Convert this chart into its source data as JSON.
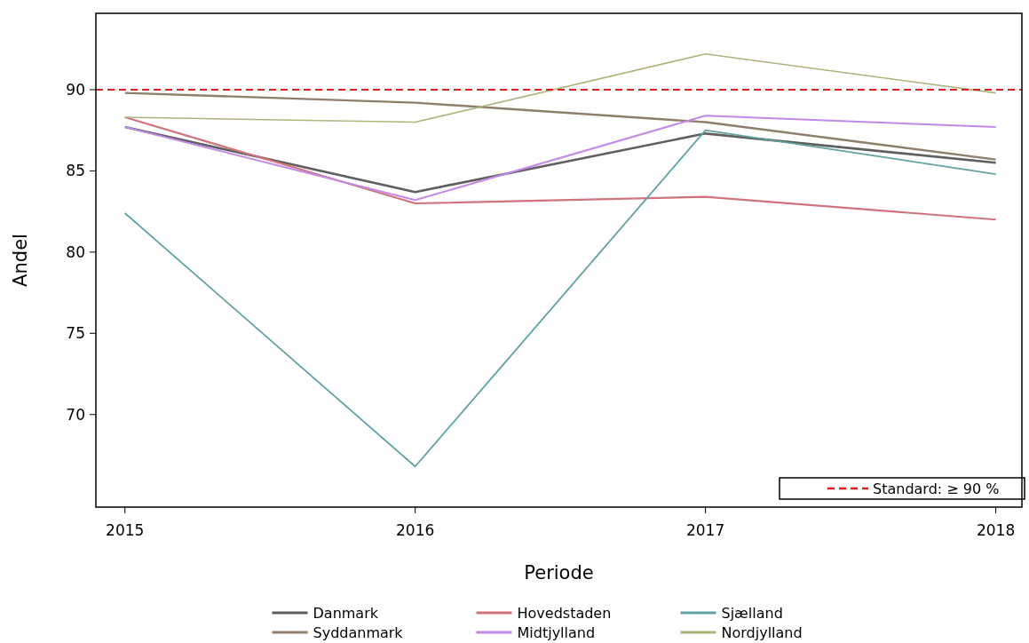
{
  "chart_data": {
    "type": "line",
    "xlabel": "Periode",
    "ylabel": "Andel",
    "x": [
      2015,
      2016,
      2017,
      2018
    ],
    "xlim": [
      2014.9,
      2018.09
    ],
    "xticks": [
      2015,
      2016,
      2017,
      2018
    ],
    "ylim": [
      64.3,
      94.7
    ],
    "yticks": [
      70,
      75,
      80,
      85,
      90
    ],
    "series": [
      {
        "name": "Danmark",
        "color": "#5f5f5f",
        "values": [
          87.7,
          83.7,
          87.3,
          85.5
        ]
      },
      {
        "name": "Syddanmark",
        "color": "#8f7e6c",
        "values": [
          89.8,
          89.2,
          88.0,
          85.7
        ]
      },
      {
        "name": "Hovedstaden",
        "color": "#d0747c",
        "values": [
          88.3,
          83.0,
          83.4,
          82.0
        ]
      },
      {
        "name": "Midtjylland",
        "color": "#c489e8",
        "values": [
          87.7,
          83.2,
          88.4,
          87.7
        ]
      },
      {
        "name": "Sjælland",
        "color": "#5fa2a2",
        "values": [
          82.4,
          66.8,
          87.5,
          84.8
        ]
      },
      {
        "name": "Nordjylland",
        "color": "#a9b77b",
        "values": [
          88.3,
          88.0,
          92.2,
          89.8
        ]
      }
    ],
    "ref_lines": [
      {
        "axis": "y",
        "value": 90,
        "label": "Standard: ≥ 90 %",
        "color": "#e02020",
        "line_style": "dashed"
      }
    ],
    "legend": "bottom",
    "grid": false,
    "marker": "none",
    "line_style": "solid"
  }
}
